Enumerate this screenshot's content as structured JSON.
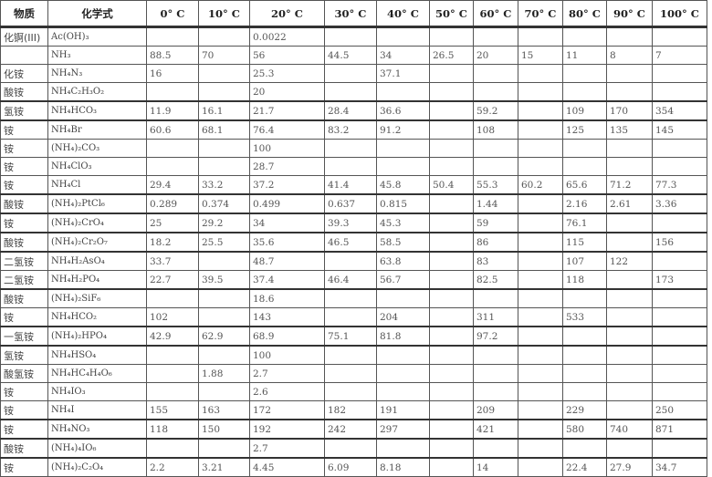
{
  "headers": [
    "物质",
    "化学式",
    "0° C",
    "10° C",
    "20° C",
    "30° C",
    "40° C",
    "50° C",
    "60° C",
    "70° C",
    "80° C",
    "90° C",
    "100° C"
  ],
  "rows": [
    {
      "name": "化锕(III)",
      "formula": "Ac(OH)₃",
      "values": [
        "",
        "",
        "0.0022",
        "",
        "",
        "",
        "",
        "",
        "",
        "",
        ""
      ]
    },
    {
      "name": "",
      "formula": "NH₃",
      "values": [
        "88.5",
        "70",
        "56",
        "44.5",
        "34",
        "26.5",
        "20",
        "15",
        "11",
        "8",
        "7"
      ]
    },
    {
      "name": "化铵",
      "formula": "NH₄N₃",
      "values": [
        "16",
        "",
        "25.3",
        "",
        "37.1",
        "",
        "",
        "",
        "",
        "",
        ""
      ]
    },
    {
      "name": "酸铵",
      "formula": "NH₄C₂H₃O₂",
      "values": [
        "",
        "",
        "20",
        "",
        "",
        "",
        "",
        "",
        "",
        "",
        ""
      ]
    },
    {
      "name": "氢铵",
      "formula": "NH₄HCO₃",
      "values": [
        "11.9",
        "16.1",
        "21.7",
        "28.4",
        "36.6",
        "",
        "59.2",
        "",
        "109",
        "170",
        "354"
      ]
    },
    {
      "name": "铵",
      "formula": "NH₄Br",
      "values": [
        "60.6",
        "68.1",
        "76.4",
        "83.2",
        "91.2",
        "",
        "108",
        "",
        "125",
        "135",
        "145"
      ]
    },
    {
      "name": "铵",
      "formula": "(NH₄)₂CO₃",
      "values": [
        "",
        "",
        "100",
        "",
        "",
        "",
        "",
        "",
        "",
        "",
        ""
      ]
    },
    {
      "name": "铵",
      "formula": "NH₄ClO₃",
      "values": [
        "",
        "",
        "28.7",
        "",
        "",
        "",
        "",
        "",
        "",
        "",
        ""
      ]
    },
    {
      "name": "铵",
      "formula": "NH₄Cl",
      "values": [
        "29.4",
        "33.2",
        "37.2",
        "41.4",
        "45.8",
        "50.4",
        "55.3",
        "60.2",
        "65.6",
        "71.2",
        "77.3"
      ]
    },
    {
      "name": "酸铵",
      "formula": "(NH₄)₂PtCl₆",
      "values": [
        "0.289",
        "0.374",
        "0.499",
        "0.637",
        "0.815",
        "",
        "1.44",
        "",
        "2.16",
        "2.61",
        "3.36"
      ]
    },
    {
      "name": "铵",
      "formula": "(NH₄)₂CrO₄",
      "values": [
        "25",
        "29.2",
        "34",
        "39.3",
        "45.3",
        "",
        "59",
        "",
        "76.1",
        "",
        ""
      ]
    },
    {
      "name": "酸铵",
      "formula": "(NH₄)₂Cr₂O₇",
      "values": [
        "18.2",
        "25.5",
        "35.6",
        "46.5",
        "58.5",
        "",
        "86",
        "",
        "115",
        "",
        "156"
      ]
    },
    {
      "name": "二氢铵",
      "formula": "NH₄H₂AsO₄",
      "values": [
        "33.7",
        "",
        "48.7",
        "",
        "63.8",
        "",
        "83",
        "",
        "107",
        "122",
        ""
      ]
    },
    {
      "name": "二氢铵",
      "formula": "NH₄H₂PO₄",
      "values": [
        "22.7",
        "39.5",
        "37.4",
        "46.4",
        "56.7",
        "",
        "82.5",
        "",
        "118",
        "",
        "173"
      ]
    },
    {
      "name": "酸铵",
      "formula": "(NH₄)₂SiF₆",
      "values": [
        "",
        "",
        "18.6",
        "",
        "",
        "",
        "",
        "",
        "",
        "",
        ""
      ]
    },
    {
      "name": "铵",
      "formula": "NH₄HCO₂",
      "values": [
        "102",
        "",
        "143",
        "",
        "204",
        "",
        "311",
        "",
        "533",
        "",
        ""
      ]
    },
    {
      "name": "一氢铵",
      "formula": "(NH₄)₂HPO₄",
      "values": [
        "42.9",
        "62.9",
        "68.9",
        "75.1",
        "81.8",
        "",
        "97.2",
        "",
        "",
        "",
        ""
      ]
    },
    {
      "name": "氢铵",
      "formula": "NH₄HSO₄",
      "values": [
        "",
        "",
        "100",
        "",
        "",
        "",
        "",
        "",
        "",
        "",
        ""
      ]
    },
    {
      "name": "酸氢铵",
      "formula": "NH₄HC₄H₄O₆",
      "values": [
        "",
        "1.88",
        "2.7",
        "",
        "",
        "",
        "",
        "",
        "",
        "",
        ""
      ]
    },
    {
      "name": "铵",
      "formula": "NH₄IO₃",
      "values": [
        "",
        "",
        "2.6",
        "",
        "",
        "",
        "",
        "",
        "",
        "",
        ""
      ]
    },
    {
      "name": "铵",
      "formula": "NH₄I",
      "values": [
        "155",
        "163",
        "172",
        "182",
        "191",
        "",
        "209",
        "",
        "229",
        "",
        "250"
      ]
    },
    {
      "name": "铵",
      "formula": "NH₄NO₃",
      "values": [
        "118",
        "150",
        "192",
        "242",
        "297",
        "",
        "421",
        "",
        "580",
        "740",
        "871"
      ]
    },
    {
      "name": "酸铵",
      "formula": "(NH₄)₄IO₆",
      "values": [
        "",
        "",
        "2.7",
        "",
        "",
        "",
        "",
        "",
        "",
        "",
        ""
      ]
    },
    {
      "name": "铵",
      "formula": "(NH₄)₂C₂O₄",
      "values": [
        "2.2",
        "3.21",
        "4.45",
        "6.09",
        "8.18",
        "",
        "14",
        "",
        "22.4",
        "27.9",
        "34.7"
      ]
    }
  ]
}
